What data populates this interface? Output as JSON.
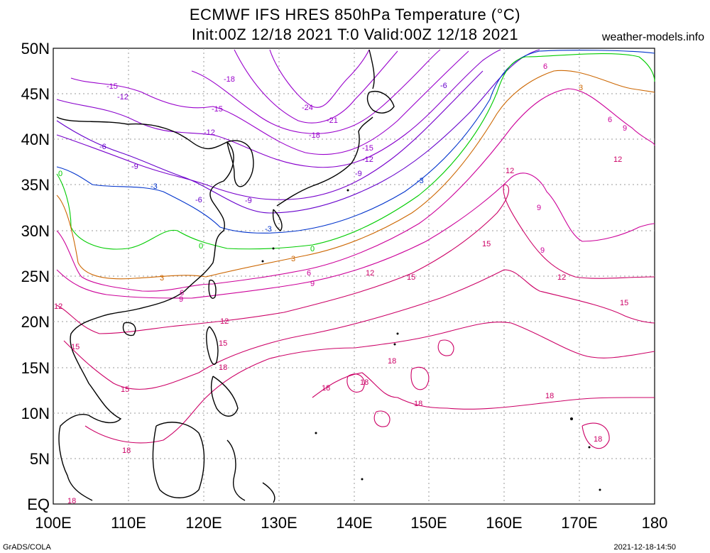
{
  "title_line1": "ECMWF IFS HRES 850hPa Temperature (°C)",
  "title_line2": "Init:00Z 12/18 2021 T:0 Valid:00Z 12/18 2021",
  "brand": "weather-models.info",
  "footer_left": "GrADS/COLA",
  "footer_right": "2021-12-18-14:50",
  "lat_labels": [
    "50N",
    "45N",
    "40N",
    "35N",
    "30N",
    "25N",
    "20N",
    "15N",
    "10N",
    "5N",
    "EQ"
  ],
  "lon_labels": [
    "100E",
    "110E",
    "120E",
    "130E",
    "140E",
    "150E",
    "160E",
    "170E",
    "180"
  ],
  "contour_labels": {
    "minus24": "-24",
    "minus21": "-21",
    "minus18": "-18",
    "minus15": "-15",
    "minus12": "-12",
    "minus9": "-9",
    "minus6": "-6",
    "minus3": "-3",
    "zero": "0",
    "plus3": "3",
    "plus6": "6",
    "plus9": "9",
    "plus12": "12",
    "plus15": "15",
    "plus18": "18"
  },
  "colors": {
    "cold_deep": "#9900cc",
    "cold": "#6600cc",
    "minus3": "#0033cc",
    "zero": "#00cc00",
    "plus3": "#cc6600",
    "warm": "#cc0099",
    "coast": "#000000",
    "grid": "#999999"
  }
}
